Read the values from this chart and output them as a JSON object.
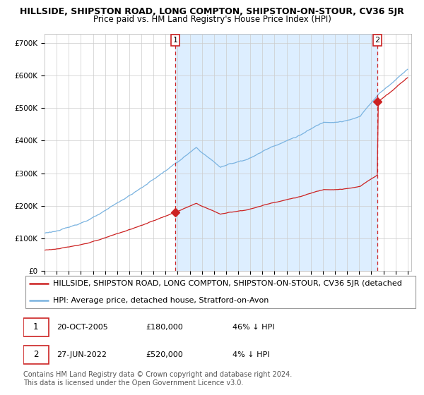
{
  "title1": "HILLSIDE, SHIPSTON ROAD, LONG COMPTON, SHIPSTON-ON-STOUR, CV36 5JR",
  "title2": "Price paid vs. HM Land Registry's House Price Index (HPI)",
  "ylabel_ticks": [
    "£0",
    "£100K",
    "£200K",
    "£300K",
    "£400K",
    "£500K",
    "£600K",
    "£700K"
  ],
  "ytick_vals": [
    0,
    100000,
    200000,
    300000,
    400000,
    500000,
    600000,
    700000
  ],
  "ylim": [
    0,
    730000
  ],
  "xlim_start": 1995.0,
  "xlim_end": 2025.3,
  "marker1_date": 2005.8,
  "marker1_value": 180000,
  "marker2_date": 2022.5,
  "marker2_value": 520000,
  "legend_line1": "HILLSIDE, SHIPSTON ROAD, LONG COMPTON, SHIPSTON-ON-STOUR, CV36 5JR (detached",
  "legend_line2": "HPI: Average price, detached house, Stratford-on-Avon",
  "footer1": "Contains HM Land Registry data © Crown copyright and database right 2024.",
  "footer2": "This data is licensed under the Open Government Licence v3.0.",
  "hpi_color": "#7ab3e0",
  "price_color": "#cc2222",
  "bg_shaded_color": "#ddeeff",
  "marker_box_color": "#cc2222",
  "grid_color": "#cccccc",
  "title_fontsize": 9.0,
  "subtitle_fontsize": 8.5,
  "tick_fontsize": 7.5,
  "legend_fontsize": 8.0,
  "annot_fontsize": 8.5,
  "footer_fontsize": 7.0
}
